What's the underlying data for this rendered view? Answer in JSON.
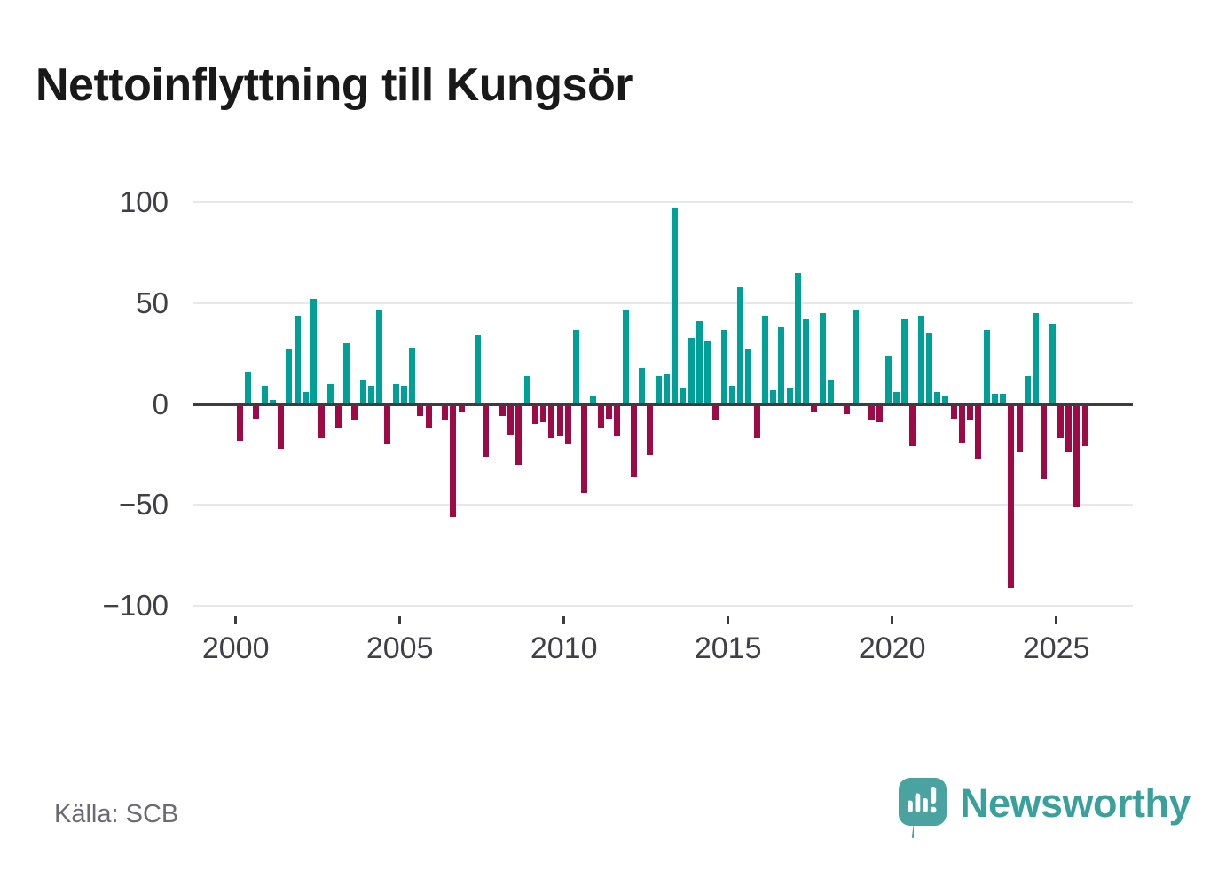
{
  "title": "Nettoinflyttning till Kungsör",
  "source": "Källa: SCB",
  "brand": {
    "name": "Newsworthy",
    "icon": "newsworthy-speech-bubble-bar-chart-icon",
    "color": "#3aa09b"
  },
  "colors": {
    "positive_bar": "#00a098",
    "negative_bar": "#9c0b45",
    "axis": "#3d3d3d",
    "grid": "#e8e8e8",
    "tick_text": "#3f3f46",
    "muted_text": "#6a6a73",
    "title_text": "#191919"
  },
  "chart_data": {
    "type": "bar",
    "title": "Nettoinflyttning till Kungsör",
    "frequency": "quarterly",
    "start": "2000-Q1",
    "end": "2025-Q4",
    "grid": true,
    "ylim": [
      -100,
      100
    ],
    "y_tick_values": [
      100,
      50,
      0,
      -50,
      -100
    ],
    "y_tick_labels": [
      "100",
      "50",
      "0",
      "−50",
      "−100"
    ],
    "x_tick_labels": [
      "2000",
      "2005",
      "2010",
      "2015",
      "2020",
      "2025"
    ],
    "series": [
      {
        "name": "Nettoinflyttning",
        "values": [
          -18,
          16,
          -7,
          9,
          2,
          -22,
          27,
          44,
          6,
          52,
          -17,
          10,
          -12,
          30,
          -8,
          12,
          9,
          47,
          -20,
          10,
          9,
          28,
          -6,
          -12,
          0,
          -8,
          -56,
          -4,
          0,
          34,
          -26,
          0,
          -6,
          -15,
          -30,
          14,
          -10,
          -9,
          -17,
          -16,
          -20,
          37,
          -44,
          4,
          -12,
          -7,
          -16,
          47,
          -36,
          18,
          -25,
          14,
          15,
          97,
          8,
          33,
          41,
          31,
          -8,
          37,
          9,
          58,
          27,
          -17,
          44,
          7,
          38,
          8,
          65,
          42,
          -4,
          45,
          12,
          0,
          -5,
          47,
          0,
          -8,
          -9,
          24,
          6,
          42,
          -21,
          44,
          35,
          6,
          4,
          -7,
          -19,
          -8,
          -27,
          37,
          5,
          5,
          -91,
          -24,
          14,
          45,
          -37,
          40,
          -17,
          -24,
          -51,
          -21
        ]
      }
    ]
  }
}
